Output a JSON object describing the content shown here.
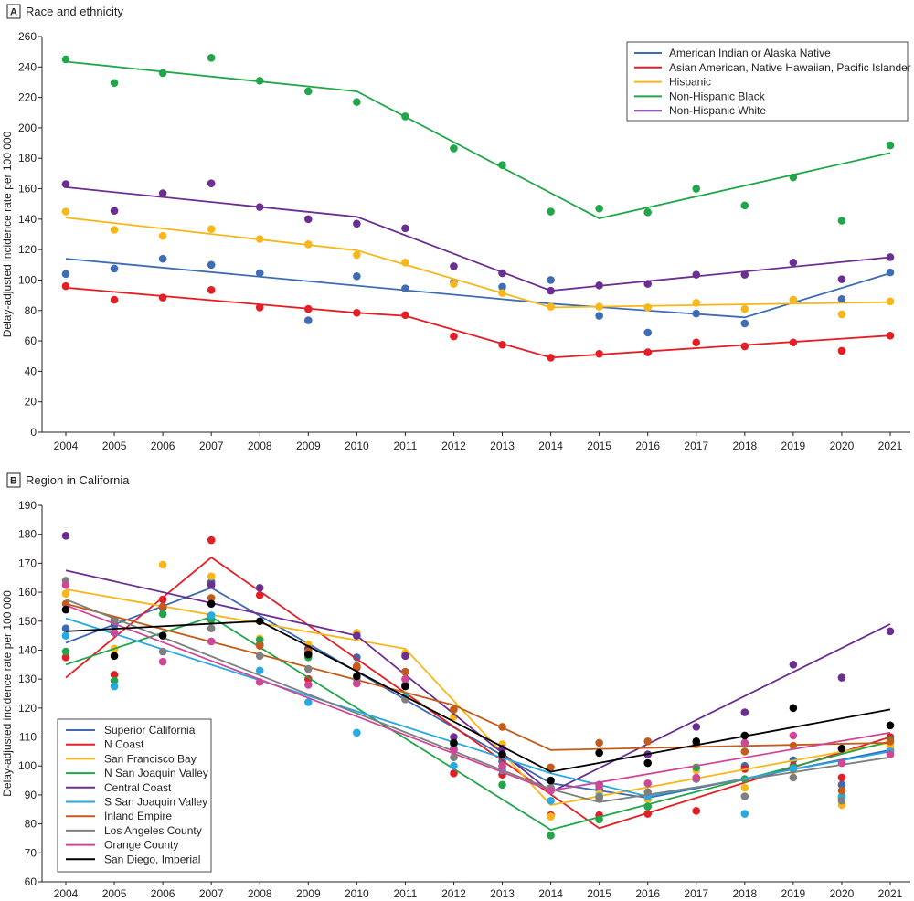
{
  "chart_data": [
    {
      "type": "scatter",
      "panel_letter": "A",
      "title": "Race and ethnicity",
      "xlabel": "",
      "ylabel": "Delay-adjusted incidence rate per 100 000",
      "xlim": [
        2004,
        2021
      ],
      "ylim": [
        0,
        260
      ],
      "x_ticks": [
        2004,
        2005,
        2006,
        2007,
        2008,
        2009,
        2010,
        2011,
        2012,
        2013,
        2014,
        2015,
        2016,
        2017,
        2018,
        2019,
        2020,
        2021
      ],
      "y_ticks": [
        0,
        20,
        40,
        60,
        80,
        100,
        120,
        140,
        160,
        180,
        200,
        220,
        240,
        260
      ],
      "legend_position": "top-right",
      "grid": false,
      "years": [
        2004,
        2005,
        2006,
        2007,
        2008,
        2009,
        2010,
        2011,
        2012,
        2013,
        2014,
        2015,
        2016,
        2017,
        2018,
        2019,
        2020,
        2021
      ],
      "series": [
        {
          "name": "American Indian or Alaska Native",
          "color": "#3f6db4",
          "points": [
            104,
            107.5,
            114,
            110,
            104.5,
            73.5,
            102.5,
            94.5,
            98.5,
            95.5,
            100,
            76.5,
            65.5,
            78,
            71.5,
            87,
            87.5,
            105
          ],
          "trend": [
            [
              2004,
              114
            ],
            [
              2014,
              84.5
            ],
            [
              2018,
              75.5
            ],
            [
              2021,
              104.5
            ]
          ]
        },
        {
          "name": "Asian American, Native Hawaiian, Pacific Islander",
          "color": "#e31e24",
          "points": [
            96,
            87,
            88.5,
            93.5,
            82,
            81,
            78.5,
            77,
            63,
            57.5,
            49,
            51.5,
            52.5,
            59,
            56.5,
            59,
            53.5,
            63.5
          ],
          "trend": [
            [
              2004,
              95
            ],
            [
              2010,
              78.5
            ],
            [
              2011,
              76.5
            ],
            [
              2014,
              49
            ],
            [
              2021,
              63.5
            ]
          ]
        },
        {
          "name": "Hispanic",
          "color": "#f7b719",
          "points": [
            145,
            133,
            129,
            133.5,
            127,
            123.5,
            116.5,
            111.5,
            97.5,
            91.5,
            82.5,
            82.5,
            82,
            85,
            81,
            87,
            77.5,
            86
          ],
          "trend": [
            [
              2004,
              141
            ],
            [
              2010,
              119.5
            ],
            [
              2014,
              82
            ],
            [
              2021,
              85.5
            ]
          ]
        },
        {
          "name": "Non-Hispanic Black",
          "color": "#21a64a",
          "points": [
            245,
            229.5,
            236,
            246,
            231,
            224,
            217,
            207.5,
            186.5,
            175.5,
            145,
            147,
            144.5,
            160,
            149,
            167.5,
            139,
            188.5
          ],
          "trend": [
            [
              2004,
              243.5
            ],
            [
              2010,
              224
            ],
            [
              2015,
              140.5
            ],
            [
              2021,
              183.5
            ]
          ]
        },
        {
          "name": "Non-Hispanic White",
          "color": "#6b2e91",
          "points": [
            163,
            145.5,
            157,
            163.5,
            148,
            140,
            137,
            134,
            109,
            104.5,
            93,
            96.5,
            97.5,
            103.5,
            103.5,
            111.5,
            100.5,
            115
          ],
          "trend": [
            [
              2004,
              161
            ],
            [
              2010,
              141.5
            ],
            [
              2014,
              93
            ],
            [
              2021,
              115
            ]
          ]
        }
      ]
    },
    {
      "type": "scatter",
      "panel_letter": "B",
      "title": "Region in California",
      "xlabel": "",
      "ylabel": "Delay-adjusted incidence rate per 100 000",
      "xlim": [
        2004,
        2021
      ],
      "ylim": [
        60,
        190
      ],
      "x_ticks": [
        2004,
        2005,
        2006,
        2007,
        2008,
        2009,
        2010,
        2011,
        2012,
        2013,
        2014,
        2015,
        2016,
        2017,
        2018,
        2019,
        2020,
        2021
      ],
      "y_ticks": [
        60,
        70,
        80,
        90,
        100,
        110,
        120,
        130,
        140,
        150,
        160,
        170,
        180,
        190
      ],
      "legend_position": "bottom-left",
      "grid": false,
      "years": [
        2004,
        2005,
        2006,
        2007,
        2008,
        2009,
        2010,
        2011,
        2012,
        2013,
        2014,
        2015,
        2016,
        2017,
        2018,
        2019,
        2020,
        2021
      ],
      "series": [
        {
          "name": "Superior California",
          "color": "#3d6ab0",
          "points": [
            147.5,
            148.5,
            154.5,
            163.5,
            142,
            139,
            137.5,
            128,
            106,
            101.5,
            91.5,
            92,
            89.5,
            95.5,
            100,
            102,
            93.5,
            105.5
          ],
          "trend": [
            [
              2004,
              142.5
            ],
            [
              2007,
              161.5
            ],
            [
              2014,
              94
            ],
            [
              2016,
              89
            ],
            [
              2021,
              105.5
            ]
          ]
        },
        {
          "name": "N Coast",
          "color": "#e31e24",
          "points": [
            137.5,
            131.5,
            157.5,
            178,
            159,
            130,
            134,
            132.5,
            97.5,
            97,
            83,
            83,
            83.5,
            84.5,
            99,
            100,
            96,
            110
          ],
          "trend": [
            [
              2004,
              130.5
            ],
            [
              2007,
              172
            ],
            [
              2015,
              78.5
            ],
            [
              2021,
              110
            ]
          ]
        },
        {
          "name": "San Francisco Bay",
          "color": "#f7b719",
          "points": [
            159.5,
            140.5,
            169.5,
            165.5,
            144,
            142,
            146,
            139,
            117,
            107.5,
            82.5,
            90.5,
            88.5,
            98.5,
            92.5,
            98.5,
            86.5,
            107
          ],
          "trend": [
            [
              2004,
              161
            ],
            [
              2011,
              140.5
            ],
            [
              2014,
              86.5
            ],
            [
              2021,
              108
            ]
          ]
        },
        {
          "name": "N San Joaquin Valley",
          "color": "#21a64a",
          "points": [
            139.5,
            129.5,
            152.5,
            150.5,
            143.5,
            137.5,
            128.5,
            124,
            107.5,
            93.5,
            76,
            81.5,
            86,
            99.5,
            95.5,
            99.5,
            89,
            109
          ],
          "trend": [
            [
              2004,
              135
            ],
            [
              2007,
              151.5
            ],
            [
              2014,
              78
            ],
            [
              2021,
              108.5
            ]
          ]
        },
        {
          "name": "Central Coast",
          "color": "#6b2e91",
          "points": [
            179.5,
            146,
            155,
            162.5,
            161.5,
            140.5,
            145,
            138,
            110,
            106,
            92,
            93.5,
            104,
            113.5,
            118.5,
            135,
            130.5,
            146.5
          ],
          "trend": [
            [
              2004,
              167.5
            ],
            [
              2010,
              145
            ],
            [
              2014,
              91
            ],
            [
              2021,
              149
            ]
          ]
        },
        {
          "name": "S San Joaquin Valley",
          "color": "#27a9e1",
          "points": [
            145,
            127.5,
            155,
            152,
            133,
            122,
            111.5,
            123.5,
            100,
            98.5,
            88,
            89.5,
            89.5,
            95.5,
            83.5,
            99,
            89.5,
            105
          ],
          "trend": [
            [
              2004,
              151
            ],
            [
              2014,
              97.5
            ],
            [
              2016,
              89.5
            ],
            [
              2021,
              105
            ]
          ]
        },
        {
          "name": "Inland Empire",
          "color": "#c45b1b",
          "points": [
            156,
            150.5,
            155,
            158,
            141.5,
            139.5,
            134.5,
            132.5,
            119.5,
            113.5,
            99.5,
            108,
            108.5,
            107.5,
            105,
            107,
            91.5,
            108.5
          ],
          "trend": [
            [
              2004,
              156
            ],
            [
              2012,
              121
            ],
            [
              2014,
              105.5
            ],
            [
              2021,
              108
            ]
          ]
        },
        {
          "name": "Los Angeles County",
          "color": "#7f7f7f",
          "points": [
            164,
            150,
            139.5,
            147.5,
            138,
            133.5,
            130,
            123,
            103,
            100,
            92.5,
            89,
            91,
            95.5,
            89.5,
            96,
            88,
            104
          ],
          "trend": [
            [
              2004,
              157.5
            ],
            [
              2014,
              92
            ],
            [
              2015,
              87.5
            ],
            [
              2021,
              103
            ]
          ]
        },
        {
          "name": "Orange County",
          "color": "#cf4897",
          "points": [
            162.5,
            146,
            136,
            143,
            129,
            128,
            128.5,
            130,
            105.5,
            100,
            91.5,
            93,
            94,
            96,
            108,
            110.5,
            101,
            104
          ],
          "trend": [
            [
              2004,
              155.5
            ],
            [
              2014,
              91.5
            ],
            [
              2021,
              111.5
            ]
          ]
        },
        {
          "name": "San Diego, Imperial",
          "color": "#000000",
          "points": [
            154,
            138,
            145,
            156,
            150,
            138.5,
            131,
            127.5,
            108,
            104,
            95,
            104.5,
            101,
            108.5,
            110.5,
            120,
            106,
            114
          ],
          "trend": [
            [
              2004,
              146.5
            ],
            [
              2008,
              150
            ],
            [
              2014,
              98
            ],
            [
              2021,
              119.5
            ]
          ]
        }
      ]
    }
  ]
}
